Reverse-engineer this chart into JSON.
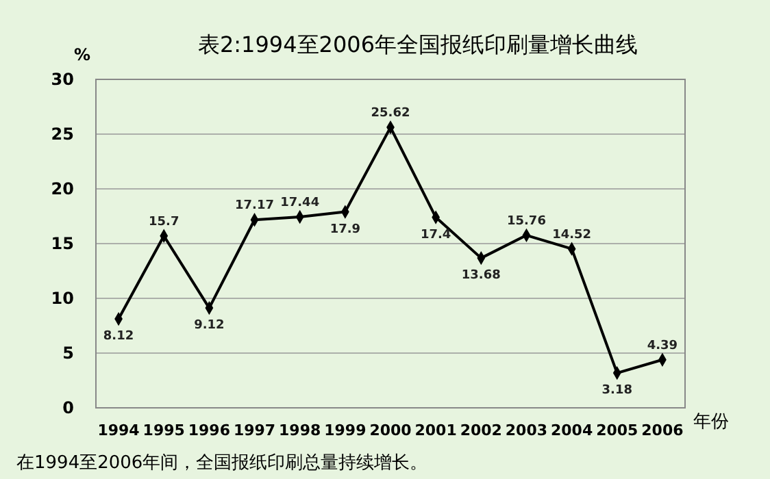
{
  "chart_data": {
    "type": "line",
    "title": "表2:1994至2006年全国报纸印刷量增长曲线",
    "ylabel": "%",
    "xlabel": "年份",
    "annotations": [
      "在1994至2006年间，全国报纸印刷总量持续增长。"
    ],
    "categories": [
      "1994",
      "1995",
      "1996",
      "1997",
      "1998",
      "1999",
      "2000",
      "2001",
      "2002",
      "2003",
      "2004",
      "2005",
      "2006"
    ],
    "series": [
      {
        "color": "#000000",
        "values": [
          8.12,
          15.7,
          9.12,
          17.17,
          17.44,
          17.9,
          25.62,
          17.4,
          13.68,
          15.76,
          14.52,
          3.18,
          4.39
        ]
      }
    ],
    "ylim": [
      0,
      30
    ],
    "yticks": [
      0,
      5,
      10,
      15,
      20,
      25,
      30
    ],
    "grid": "y",
    "marker": "diamond",
    "line_style": "solid",
    "data_labels": true
  }
}
